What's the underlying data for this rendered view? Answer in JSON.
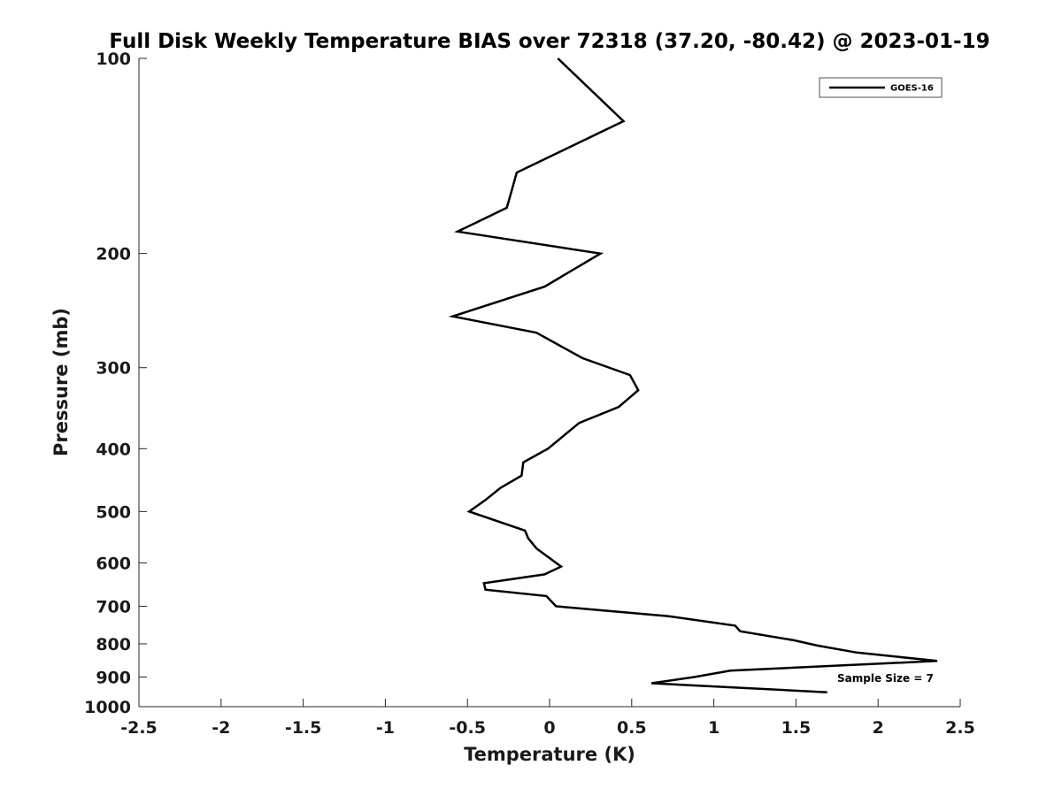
{
  "chart_data": {
    "type": "line",
    "title": "Full Disk Weekly Temperature BIAS over 72318 (37.20, -80.42) @ 2023-01-19",
    "xlabel": "Temperature (K)",
    "ylabel": "Pressure (mb)",
    "xlim": [
      -2.5,
      2.5
    ],
    "ylim": [
      100,
      1000
    ],
    "y_scale": "log",
    "y_reversed": true,
    "grid": false,
    "x_ticks": [
      -2.5,
      -2,
      -1.5,
      -1,
      -0.5,
      0,
      0.5,
      1,
      1.5,
      2,
      2.5
    ],
    "x_tick_labels": [
      "-2.5",
      "-2",
      "-1.5",
      "-1",
      "-0.5",
      "0",
      "0.5",
      "1",
      "1.5",
      "2",
      "2.5"
    ],
    "y_ticks": [
      100,
      200,
      300,
      400,
      500,
      600,
      700,
      800,
      900,
      1000
    ],
    "y_tick_labels": [
      "100",
      "200",
      "300",
      "400",
      "500",
      "600",
      "700",
      "800",
      "900",
      "1000"
    ],
    "legend_position": "top-right",
    "annotation": "Sample Size = 7",
    "series": [
      {
        "name": "GOES-16",
        "color": "#000000",
        "x": [
          0.05,
          0.45,
          -0.2,
          -0.26,
          -0.56,
          0.31,
          -0.03,
          -0.59,
          -0.08,
          0.2,
          0.49,
          0.54,
          0.42,
          0.18,
          0.07,
          -0.01,
          -0.16,
          -0.17,
          -0.3,
          -0.39,
          -0.49,
          -0.15,
          -0.13,
          -0.08,
          0.0,
          0.07,
          -0.03,
          -0.4,
          -0.39,
          -0.02,
          0.04,
          0.72,
          1.13,
          1.16,
          1.49,
          1.63,
          1.87,
          2.36,
          1.1,
          0.88,
          0.62,
          1.69
        ],
        "y": [
          100,
          125,
          150,
          170,
          185,
          200,
          225,
          250,
          265,
          290,
          308,
          325,
          345,
          365,
          385,
          400,
          420,
          440,
          460,
          480,
          500,
          535,
          550,
          570,
          590,
          608,
          625,
          645,
          660,
          675,
          700,
          725,
          750,
          765,
          790,
          805,
          825,
          850,
          880,
          900,
          920,
          950
        ]
      }
    ]
  }
}
